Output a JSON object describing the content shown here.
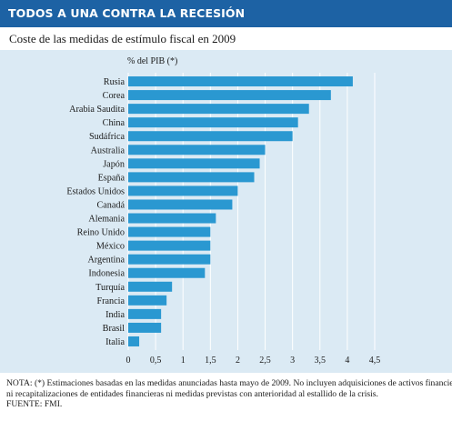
{
  "header": {
    "title": "TODOS A UNA CONTRA LA RECESIÓN"
  },
  "subtitle": "Coste de las medidas de estímulo fiscal en 2009",
  "notes": {
    "line1": "NOTA: (*) Estimaciones basadas en las medidas anunciadas hasta mayo de 2009. No incluyen adquisiciones de activos financieros,",
    "line2": "ni recapitalizaciones de entidades financieras ni medidas previstas con anterioridad al estallido de la crisis.",
    "source": "FUENTE: FMI."
  },
  "colors": {
    "header": "#1d62a4",
    "panel": "#dbeaf4",
    "bar": "#2a98d1",
    "grid": "#ffffff"
  },
  "chart_data": {
    "type": "bar",
    "orientation": "horizontal",
    "title": "",
    "unit_label": "% del PIB (*)",
    "categories": [
      "Rusia",
      "Corea",
      "Arabia Saudita",
      "China",
      "Sudáfrica",
      "Australia",
      "Japón",
      "España",
      "Estados Unidos",
      "Canadá",
      "Alemania",
      "Reino Unido",
      "México",
      "Argentina",
      "Indonesia",
      "Turquía",
      "Francia",
      "India",
      "Brasil",
      "Italia"
    ],
    "values": [
      4.1,
      3.7,
      3.3,
      3.1,
      3.0,
      2.5,
      2.4,
      2.3,
      2.0,
      1.9,
      1.6,
      1.5,
      1.5,
      1.5,
      1.4,
      0.8,
      0.7,
      0.6,
      0.6,
      0.2
    ],
    "xlim": [
      0,
      4.5
    ],
    "xticks": [
      0,
      0.5,
      1,
      1.5,
      2,
      2.5,
      3,
      3.5,
      4,
      4.5
    ],
    "xtick_labels": [
      "0",
      "0,5",
      "1",
      "1,5",
      "2",
      "2,5",
      "3",
      "3,5",
      "4",
      "4,5"
    ],
    "grid": true,
    "legend": "none"
  }
}
